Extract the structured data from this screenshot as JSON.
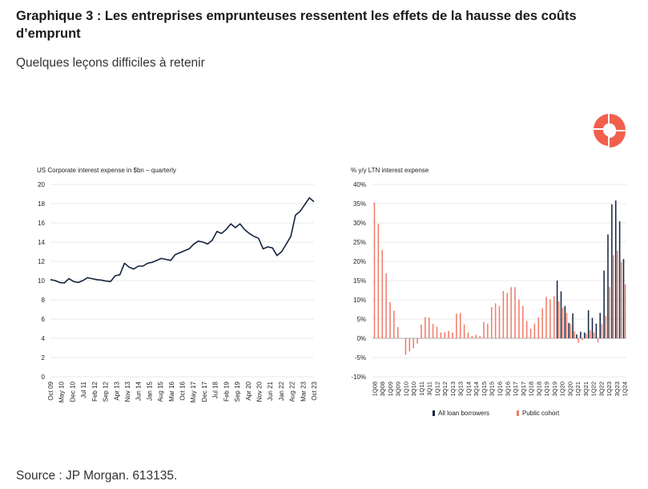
{
  "page": {
    "title": "Graphique 3 : Les entreprises emprunteuses ressentent les effets de la hausse des coûts d’emprunt",
    "subtitle": "Quelques leçons difficiles à retenir",
    "source": "Source : JP Morgan. 613135."
  },
  "colors": {
    "navy": "#14233f",
    "salmon": "#f07b68",
    "logo": "#f0604d"
  },
  "chart_data": [
    {
      "type": "line",
      "title": "US Corporate interest expense in $bn – quarterly",
      "xlabel": "",
      "ylabel": "",
      "ylim": [
        0,
        20
      ],
      "yticks": [
        "0",
        "2",
        "4",
        "6",
        "8",
        "10",
        "12",
        "14",
        "16",
        "18",
        "20"
      ],
      "xtick_labels": [
        "Oct 09",
        "May 10",
        "Dec 10",
        "Jul 11",
        "Feb 12",
        "Sep 12",
        "Apr 13",
        "Nov 13",
        "Jun 14",
        "Jan 15",
        "Aug 15",
        "Mar 16",
        "Oct 16",
        "May 17",
        "Dec 17",
        "Jul 18",
        "Feb 19",
        "Sep 19",
        "Apr 20",
        "Nov 20",
        "Jun 21",
        "Jan 22",
        "Aug 22",
        "Mar 23",
        "Oct 23"
      ],
      "series": [
        {
          "name": "US Corporate interest expense",
          "values": [
            10.1,
            10.0,
            9.8,
            9.75,
            10.2,
            9.9,
            9.8,
            10.0,
            10.3,
            10.2,
            10.1,
            10.05,
            9.95,
            9.9,
            10.5,
            10.6,
            11.8,
            11.4,
            11.2,
            11.5,
            11.5,
            11.8,
            11.9,
            12.1,
            12.3,
            12.2,
            12.1,
            12.7,
            12.9,
            13.1,
            13.3,
            13.8,
            14.1,
            14.0,
            13.8,
            14.2,
            15.1,
            14.9,
            15.3,
            15.9,
            15.5,
            15.9,
            15.3,
            14.9,
            14.6,
            14.4,
            13.3,
            13.5,
            13.4,
            12.6,
            13.0,
            13.8,
            14.6,
            16.8,
            17.2,
            17.9,
            18.6,
            18.2
          ]
        }
      ]
    },
    {
      "type": "bar",
      "title": "% y/y LTN interest expense",
      "ylim": [
        -10,
        40
      ],
      "yticks": [
        "-10%",
        "-5%",
        "0%",
        "5%",
        "10%",
        "15%",
        "20%",
        "25%",
        "30%",
        "35%",
        "40%"
      ],
      "categories": [
        "1Q08",
        "2Q08",
        "3Q08",
        "4Q08",
        "1Q09",
        "2Q09",
        "3Q09",
        "4Q09",
        "1Q10",
        "2Q10",
        "3Q10",
        "4Q10",
        "1Q11",
        "2Q11",
        "3Q11",
        "4Q11",
        "1Q12",
        "2Q12",
        "3Q12",
        "4Q12",
        "1Q13",
        "2Q13",
        "3Q13",
        "4Q13",
        "1Q14",
        "2Q14",
        "3Q14",
        "4Q14",
        "1Q15",
        "2Q15",
        "3Q15",
        "4Q15",
        "1Q16",
        "2Q16",
        "3Q16",
        "4Q16",
        "1Q17",
        "2Q17",
        "3Q17",
        "4Q17",
        "1Q18",
        "2Q18",
        "3Q18",
        "4Q18",
        "1Q19",
        "2Q19",
        "3Q19",
        "4Q19",
        "1Q20",
        "2Q20",
        "3Q20",
        "4Q20",
        "1Q21",
        "2Q21",
        "3Q21",
        "4Q21",
        "1Q22",
        "2Q22",
        "3Q22",
        "4Q22",
        "1Q23",
        "2Q23",
        "3Q23",
        "4Q23",
        "1Q24"
      ],
      "xtick_labels": [
        "1Q08",
        "3Q08",
        "1Q09",
        "3Q09",
        "1Q10",
        "3Q10",
        "1Q11",
        "3Q11",
        "1Q12",
        "3Q12",
        "1Q13",
        "3Q13",
        "1Q14",
        "3Q14",
        "1Q15",
        "3Q15",
        "1Q16",
        "3Q16",
        "1Q17",
        "3Q17",
        "1Q18",
        "3Q18",
        "1Q19",
        "3Q19",
        "1Q20",
        "3Q20",
        "1Q21",
        "3Q21",
        "1Q22",
        "3Q22",
        "1Q23",
        "3Q23",
        "1Q24"
      ],
      "legend": [
        "All loan borrowers",
        "Public cohort"
      ],
      "series": [
        {
          "name": "All loan borrowers",
          "values": [
            null,
            null,
            null,
            null,
            null,
            null,
            null,
            null,
            null,
            null,
            null,
            null,
            null,
            null,
            null,
            null,
            null,
            null,
            null,
            null,
            null,
            null,
            null,
            null,
            null,
            null,
            null,
            null,
            null,
            null,
            null,
            null,
            null,
            null,
            null,
            null,
            null,
            null,
            null,
            null,
            null,
            null,
            null,
            null,
            null,
            null,
            null,
            15.0,
            12.2,
            8.4,
            4.0,
            6.5,
            1.0,
            1.7,
            1.5,
            7.3,
            5.3,
            3.8,
            6.6,
            17.6,
            27.0,
            34.8,
            35.8,
            30.4,
            20.6
          ]
        },
        {
          "name": "Public cohort",
          "values": [
            35.3,
            29.8,
            23.0,
            16.9,
            9.4,
            7.2,
            2.9,
            0.0,
            -4.3,
            -3.4,
            -2.6,
            -1.4,
            3.6,
            5.5,
            5.4,
            3.7,
            3.0,
            1.5,
            1.6,
            1.9,
            1.5,
            6.4,
            6.6,
            3.6,
            1.5,
            0.6,
            0.9,
            0.6,
            4.2,
            3.8,
            8.1,
            9.1,
            8.4,
            12.3,
            11.8,
            13.3,
            13.3,
            10.1,
            8.4,
            4.5,
            2.5,
            3.8,
            5.4,
            7.8,
            10.8,
            10.1,
            10.9,
            9.6,
            8.0,
            6.6,
            3.7,
            1.8,
            -1.2,
            -0.5,
            1.2,
            2.1,
            1.5,
            -1.0,
            3.8,
            5.8,
            13.4,
            21.6,
            22.8,
            19.8,
            14.0
          ]
        }
      ]
    }
  ]
}
